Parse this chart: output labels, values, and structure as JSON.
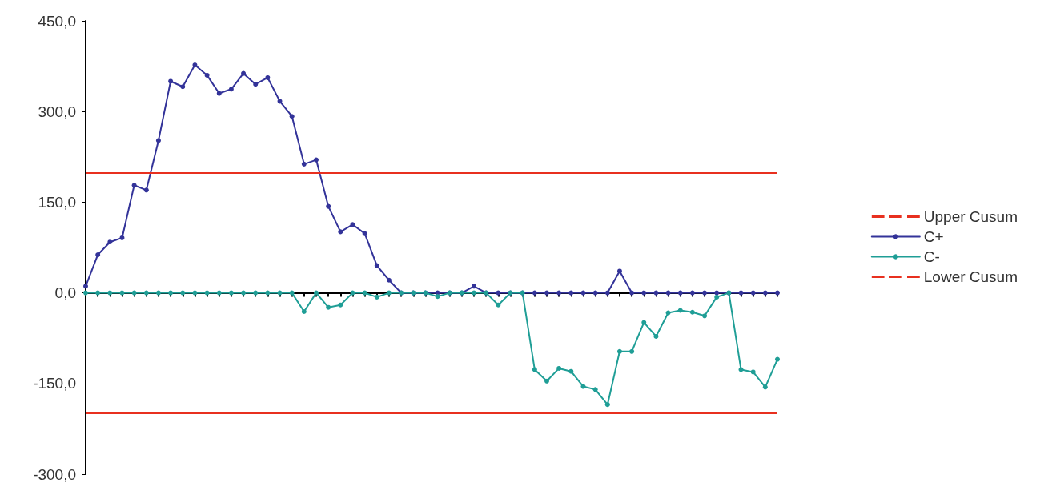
{
  "chart_data": {
    "type": "line",
    "categories": [
      null,
      null,
      null,
      null,
      null,
      null,
      null,
      null,
      null,
      null,
      null,
      null,
      null,
      null,
      null,
      null,
      null,
      null,
      null,
      null,
      null,
      null,
      null,
      null,
      null,
      null,
      null,
      null,
      null,
      null,
      null,
      null,
      null,
      null,
      null,
      null,
      null,
      null,
      null,
      null,
      null,
      null,
      null,
      null,
      null,
      null,
      null,
      null,
      null,
      null,
      null,
      null,
      null,
      null,
      null,
      null,
      null,
      null
    ],
    "series": [
      {
        "name": "C+",
        "color": "#333399",
        "values": [
          11,
          63,
          84,
          91,
          178,
          170,
          252,
          350,
          341,
          377,
          360,
          330,
          337,
          363,
          345,
          356,
          317,
          292,
          213,
          220,
          143,
          101,
          113,
          98,
          45,
          21,
          0,
          0,
          0,
          0,
          0,
          0,
          11,
          0,
          0,
          0,
          0,
          0,
          0,
          0,
          0,
          0,
          0,
          0,
          36,
          0,
          0,
          0,
          0,
          0,
          0,
          0,
          0,
          0,
          0,
          0,
          0,
          0
        ]
      },
      {
        "name": "C-",
        "color": "#1f9e96",
        "values": [
          0,
          0,
          0,
          0,
          0,
          0,
          0,
          0,
          0,
          0,
          0,
          0,
          0,
          0,
          0,
          0,
          0,
          0,
          -31,
          0,
          -24,
          -20,
          0,
          0,
          -7,
          0,
          0,
          0,
          0,
          -6,
          0,
          0,
          0,
          0,
          -20,
          0,
          0,
          -127,
          -146,
          -125,
          -130,
          -155,
          -160,
          -185,
          -97,
          -97,
          -49,
          -72,
          -33,
          -29,
          -32,
          -38,
          -7,
          0,
          -127,
          -131,
          -156,
          -110
        ]
      }
    ],
    "ylim": [
      -300,
      450
    ],
    "yticks": [
      {
        "value": -300,
        "label": "-300,0"
      },
      {
        "value": -150,
        "label": "-150,0"
      },
      {
        "value": 0,
        "label": "0,0"
      },
      {
        "value": 150,
        "label": "150,0"
      },
      {
        "value": 300,
        "label": "300,0"
      },
      {
        "value": 450,
        "label": "450,0"
      }
    ],
    "ref_lines": [
      {
        "axis": "y",
        "value": 199,
        "label": "Upper Cusum",
        "color": "#e8301f"
      },
      {
        "axis": "y",
        "value": -199,
        "label": "Lower Cusum",
        "color": "#e8301f"
      }
    ],
    "tick_labels": "y",
    "legend": "right",
    "marker": "circle",
    "line_style": "solid"
  }
}
